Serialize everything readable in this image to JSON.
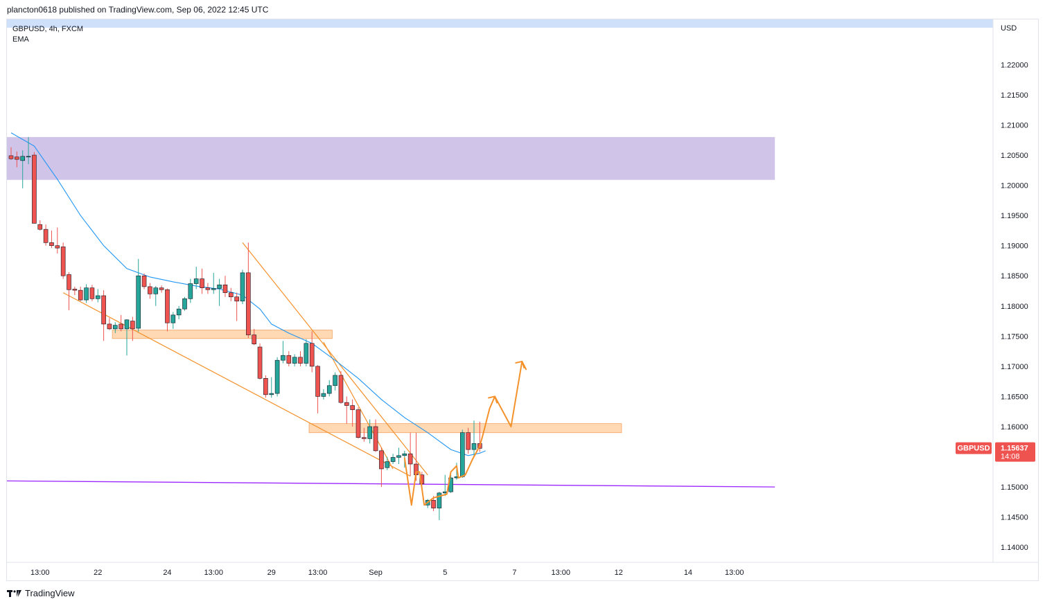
{
  "header": {
    "published_line": "plancton0618 published on TradingView.com, Sep 06, 2022 12:45 UTC"
  },
  "legend": {
    "symbol_line": "GBPUSD, 4h, FXCM",
    "indicator": "EMA"
  },
  "footer": {
    "brand": "TradingView",
    "logo_icon": "tradingview-logo-icon"
  },
  "price_label": {
    "symbol": "GBPUSD",
    "price": "1.15637",
    "countdown": "14:08"
  },
  "colors": {
    "up": "#26a69a",
    "down": "#ef5350",
    "ema": "#2196f3",
    "resistance_zone": "#d1c4e9",
    "sr_zone": "#ffcc99",
    "support_line": "#9c27ff",
    "drawing": "#f4912b",
    "top_band": "#cfe0fa"
  },
  "chart_data": {
    "type": "candlestick",
    "symbol": "GBPUSD",
    "timeframe": "4h",
    "currency": "USD",
    "ylim": [
      1.1375,
      1.2275
    ],
    "price_ticks": [
      "1.22000",
      "1.21500",
      "1.21000",
      "1.20500",
      "1.20000",
      "1.19500",
      "1.19000",
      "1.18500",
      "1.18000",
      "1.17500",
      "1.17000",
      "1.16500",
      "1.16000",
      "1.15500",
      "1.15000",
      "1.14500",
      "1.14000"
    ],
    "time_ticks": [
      {
        "label": "13:00",
        "bar": 5
      },
      {
        "label": "22",
        "bar": 15
      },
      {
        "label": "24",
        "bar": 27
      },
      {
        "label": "13:00",
        "bar": 35
      },
      {
        "label": "29",
        "bar": 45
      },
      {
        "label": "13:00",
        "bar": 53
      },
      {
        "label": "Sep",
        "bar": 63
      },
      {
        "label": "5",
        "bar": 75
      },
      {
        "label": "7",
        "bar": 87
      },
      {
        "label": "13:00",
        "bar": 95
      },
      {
        "label": "12",
        "bar": 105
      },
      {
        "label": "14",
        "bar": 117
      },
      {
        "label": "13:00",
        "bar": 125
      }
    ],
    "candles": [
      {
        "o": 1.2049,
        "h": 1.2063,
        "l": 1.2042,
        "c": 1.2044
      },
      {
        "o": 1.2047,
        "h": 1.2056,
        "l": 1.203,
        "c": 1.2043
      },
      {
        "o": 1.2041,
        "h": 1.2058,
        "l": 1.1995,
        "c": 1.2048
      },
      {
        "o": 1.2047,
        "h": 1.208,
        "l": 1.2035,
        "c": 1.2048
      },
      {
        "o": 1.205,
        "h": 1.2055,
        "l": 1.1937,
        "c": 1.1937
      },
      {
        "o": 1.1935,
        "h": 1.1942,
        "l": 1.1925,
        "c": 1.1927
      },
      {
        "o": 1.1927,
        "h": 1.1935,
        "l": 1.19,
        "c": 1.1905
      },
      {
        "o": 1.1905,
        "h": 1.1925,
        "l": 1.1896,
        "c": 1.19
      },
      {
        "o": 1.19,
        "h": 1.193,
        "l": 1.1887,
        "c": 1.1896
      },
      {
        "o": 1.1898,
        "h": 1.1905,
        "l": 1.1845,
        "c": 1.185
      },
      {
        "o": 1.1852,
        "h": 1.1856,
        "l": 1.1793,
        "c": 1.1827
      },
      {
        "o": 1.1828,
        "h": 1.1832,
        "l": 1.1818,
        "c": 1.1826
      },
      {
        "o": 1.1826,
        "h": 1.1832,
        "l": 1.1808,
        "c": 1.181
      },
      {
        "o": 1.181,
        "h": 1.1836,
        "l": 1.1805,
        "c": 1.183
      },
      {
        "o": 1.183,
        "h": 1.1835,
        "l": 1.1808,
        "c": 1.1812
      },
      {
        "o": 1.1812,
        "h": 1.1828,
        "l": 1.1806,
        "c": 1.1817
      },
      {
        "o": 1.1817,
        "h": 1.1826,
        "l": 1.1742,
        "c": 1.177
      },
      {
        "o": 1.177,
        "h": 1.178,
        "l": 1.176,
        "c": 1.1762
      },
      {
        "o": 1.1762,
        "h": 1.1773,
        "l": 1.1755,
        "c": 1.1768
      },
      {
        "o": 1.177,
        "h": 1.1785,
        "l": 1.1758,
        "c": 1.1762
      },
      {
        "o": 1.1762,
        "h": 1.1778,
        "l": 1.1718,
        "c": 1.1777
      },
      {
        "o": 1.1775,
        "h": 1.1782,
        "l": 1.1742,
        "c": 1.1762
      },
      {
        "o": 1.1763,
        "h": 1.1878,
        "l": 1.1757,
        "c": 1.185
      },
      {
        "o": 1.185,
        "h": 1.1854,
        "l": 1.1828,
        "c": 1.1832
      },
      {
        "o": 1.1832,
        "h": 1.1838,
        "l": 1.1812,
        "c": 1.182
      },
      {
        "o": 1.182,
        "h": 1.1833,
        "l": 1.18,
        "c": 1.183
      },
      {
        "o": 1.183,
        "h": 1.1834,
        "l": 1.1822,
        "c": 1.1827
      },
      {
        "o": 1.1827,
        "h": 1.1829,
        "l": 1.1758,
        "c": 1.1772
      },
      {
        "o": 1.1772,
        "h": 1.179,
        "l": 1.1762,
        "c": 1.1785
      },
      {
        "o": 1.1785,
        "h": 1.18,
        "l": 1.1778,
        "c": 1.1795
      },
      {
        "o": 1.1795,
        "h": 1.1815,
        "l": 1.1792,
        "c": 1.1812
      },
      {
        "o": 1.1812,
        "h": 1.1845,
        "l": 1.1805,
        "c": 1.1837
      },
      {
        "o": 1.1837,
        "h": 1.1865,
        "l": 1.1828,
        "c": 1.1845
      },
      {
        "o": 1.1845,
        "h": 1.1862,
        "l": 1.182,
        "c": 1.183
      },
      {
        "o": 1.183,
        "h": 1.1838,
        "l": 1.182,
        "c": 1.1827
      },
      {
        "o": 1.1827,
        "h": 1.1855,
        "l": 1.182,
        "c": 1.1829
      },
      {
        "o": 1.1829,
        "h": 1.1845,
        "l": 1.18,
        "c": 1.1835
      },
      {
        "o": 1.1835,
        "h": 1.185,
        "l": 1.1815,
        "c": 1.1822
      },
      {
        "o": 1.1822,
        "h": 1.183,
        "l": 1.1808,
        "c": 1.1815
      },
      {
        "o": 1.1815,
        "h": 1.1822,
        "l": 1.1775,
        "c": 1.1808
      },
      {
        "o": 1.1808,
        "h": 1.186,
        "l": 1.1803,
        "c": 1.1855
      },
      {
        "o": 1.1855,
        "h": 1.1905,
        "l": 1.1747,
        "c": 1.1752
      },
      {
        "o": 1.1752,
        "h": 1.1762,
        "l": 1.1735,
        "c": 1.1737
      },
      {
        "o": 1.1732,
        "h": 1.1738,
        "l": 1.1678,
        "c": 1.168
      },
      {
        "o": 1.168,
        "h": 1.1685,
        "l": 1.1648,
        "c": 1.1653
      },
      {
        "o": 1.1653,
        "h": 1.1682,
        "l": 1.1648,
        "c": 1.1655
      },
      {
        "o": 1.1655,
        "h": 1.1715,
        "l": 1.165,
        "c": 1.171
      },
      {
        "o": 1.171,
        "h": 1.1742,
        "l": 1.1705,
        "c": 1.1718
      },
      {
        "o": 1.1718,
        "h": 1.1725,
        "l": 1.17,
        "c": 1.1705
      },
      {
        "o": 1.1705,
        "h": 1.172,
        "l": 1.17,
        "c": 1.1715
      },
      {
        "o": 1.1715,
        "h": 1.1725,
        "l": 1.17,
        "c": 1.1705
      },
      {
        "o": 1.1705,
        "h": 1.1745,
        "l": 1.17,
        "c": 1.1738
      },
      {
        "o": 1.1738,
        "h": 1.1758,
        "l": 1.169,
        "c": 1.17
      },
      {
        "o": 1.17,
        "h": 1.1702,
        "l": 1.1622,
        "c": 1.165
      },
      {
        "o": 1.165,
        "h": 1.1662,
        "l": 1.1645,
        "c": 1.1655
      },
      {
        "o": 1.1655,
        "h": 1.1677,
        "l": 1.165,
        "c": 1.1668
      },
      {
        "o": 1.1668,
        "h": 1.169,
        "l": 1.166,
        "c": 1.1685
      },
      {
        "o": 1.1685,
        "h": 1.1692,
        "l": 1.1638,
        "c": 1.164
      },
      {
        "o": 1.164,
        "h": 1.165,
        "l": 1.1605,
        "c": 1.1635
      },
      {
        "o": 1.1635,
        "h": 1.1645,
        "l": 1.16,
        "c": 1.1628
      },
      {
        "o": 1.1628,
        "h": 1.1632,
        "l": 1.158,
        "c": 1.1582
      },
      {
        "o": 1.1582,
        "h": 1.1598,
        "l": 1.1575,
        "c": 1.158
      },
      {
        "o": 1.158,
        "h": 1.1612,
        "l": 1.1572,
        "c": 1.16
      },
      {
        "o": 1.16,
        "h": 1.1612,
        "l": 1.1558,
        "c": 1.156
      },
      {
        "o": 1.156,
        "h": 1.1565,
        "l": 1.15,
        "c": 1.153
      },
      {
        "o": 1.1532,
        "h": 1.155,
        "l": 1.1528,
        "c": 1.1542
      },
      {
        "o": 1.1542,
        "h": 1.1555,
        "l": 1.1538,
        "c": 1.1549
      },
      {
        "o": 1.1549,
        "h": 1.1565,
        "l": 1.1538,
        "c": 1.1552
      },
      {
        "o": 1.1552,
        "h": 1.156,
        "l": 1.1532,
        "c": 1.1555
      },
      {
        "o": 1.1555,
        "h": 1.159,
        "l": 1.1518,
        "c": 1.1538
      },
      {
        "o": 1.1538,
        "h": 1.159,
        "l": 1.151,
        "c": 1.152
      },
      {
        "o": 1.152,
        "h": 1.1525,
        "l": 1.1502,
        "c": 1.1505
      },
      {
        "o": 1.147,
        "h": 1.148,
        "l": 1.1465,
        "c": 1.1478
      },
      {
        "o": 1.1478,
        "h": 1.1485,
        "l": 1.146,
        "c": 1.1465
      },
      {
        "o": 1.1465,
        "h": 1.1492,
        "l": 1.1445,
        "c": 1.149
      },
      {
        "o": 1.149,
        "h": 1.152,
        "l": 1.1485,
        "c": 1.1492
      },
      {
        "o": 1.1492,
        "h": 1.152,
        "l": 1.149,
        "c": 1.1515
      },
      {
        "o": 1.1515,
        "h": 1.154,
        "l": 1.1512,
        "c": 1.1517
      },
      {
        "o": 1.1517,
        "h": 1.1595,
        "l": 1.1515,
        "c": 1.159
      },
      {
        "o": 1.159,
        "h": 1.1598,
        "l": 1.1555,
        "c": 1.1562
      },
      {
        "o": 1.1562,
        "h": 1.161,
        "l": 1.1552,
        "c": 1.1572
      },
      {
        "o": 1.1572,
        "h": 1.1608,
        "l": 1.1558,
        "c": 1.1564
      }
    ],
    "ema": [
      [
        0,
        1.2087
      ],
      [
        4,
        1.2065
      ],
      [
        8,
        1.201
      ],
      [
        12,
        1.195
      ],
      [
        16,
        1.19
      ],
      [
        20,
        1.1862
      ],
      [
        24,
        1.1848
      ],
      [
        28,
        1.184
      ],
      [
        32,
        1.1833
      ],
      [
        36,
        1.1828
      ],
      [
        40,
        1.1818
      ],
      [
        43,
        1.1795
      ],
      [
        45,
        1.177
      ],
      [
        48,
        1.1755
      ],
      [
        52,
        1.1738
      ],
      [
        56,
        1.171
      ],
      [
        60,
        1.168
      ],
      [
        64,
        1.1645
      ],
      [
        68,
        1.1615
      ],
      [
        72,
        1.159
      ],
      [
        76,
        1.1562
      ],
      [
        79,
        1.1552
      ],
      [
        81,
        1.1556
      ],
      [
        82,
        1.156
      ]
    ],
    "zones": [
      {
        "name": "resistance-zone",
        "from_bar": -1,
        "to_bar": 132,
        "top": 1.208,
        "bottom": 1.2009
      },
      {
        "name": "sr-zone-upper",
        "from_bar": 17.5,
        "to_bar": 55.5,
        "top": 1.176,
        "bottom": 1.1746
      },
      {
        "name": "sr-zone-lower",
        "from_bar": 51.5,
        "to_bar": 105.5,
        "top": 1.1605,
        "bottom": 1.159
      }
    ],
    "support_line": {
      "from": [
        -1,
        1.151
      ],
      "to": [
        132,
        1.15
      ]
    },
    "trendlines": [
      {
        "name": "falling-wedge-lower",
        "from": [
          9,
          1.1822
        ],
        "to": [
          69,
          1.1518
        ]
      },
      {
        "name": "falling-wedge-upper",
        "from": [
          40,
          1.1905
        ],
        "to": [
          72,
          1.152
        ]
      },
      {
        "name": "wedge-connector",
        "from": [
          54,
          1.174
        ],
        "to": [
          66,
          1.153
        ]
      }
    ],
    "projection_path": [
      [
        68,
        1.1548
      ],
      [
        69.2,
        1.147
      ],
      [
        70,
        1.1525
      ],
      [
        70.6,
        1.1525
      ],
      [
        71.4,
        1.147
      ],
      [
        73,
        1.1482
      ],
      [
        75.3,
        1.1488
      ],
      [
        76,
        1.1525
      ],
      [
        77,
        1.1535
      ],
      [
        77.3,
        1.1515
      ],
      [
        78.5,
        1.152
      ],
      [
        79.7,
        1.1545
      ],
      [
        81,
        1.1568
      ],
      [
        81.5,
        1.1585
      ],
      [
        82.7,
        1.163
      ],
      [
        83.6,
        1.165
      ],
      [
        86.4,
        1.16
      ],
      [
        88.3,
        1.1708
      ],
      [
        89,
        1.1695
      ]
    ],
    "projection_arrows": [
      {
        "tip": [
          83.6,
          1.165
        ]
      },
      {
        "tip": [
          88.3,
          1.1708
        ]
      }
    ],
    "last_price": 1.15637
  }
}
